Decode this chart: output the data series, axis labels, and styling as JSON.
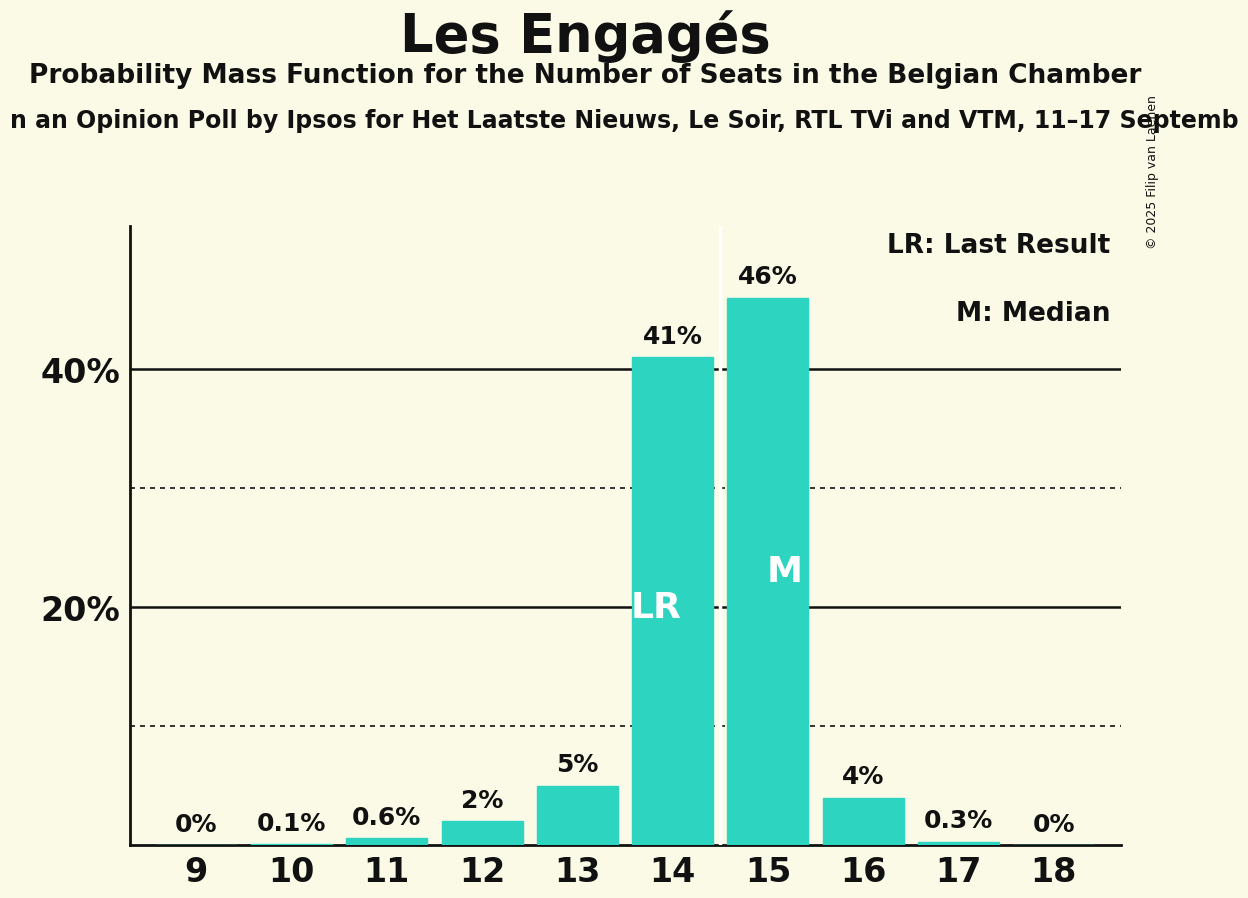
{
  "title": "Les Engagés",
  "subtitle": "Probability Mass Function for the Number of Seats in the Belgian Chamber",
  "subtitle2": "n an Opinion Poll by Ipsos for Het Laatste Nieuws, Le Soir, RTL TVi and VTM, 11–17 Septemb",
  "copyright": "© 2025 Filip van Laenen",
  "seats": [
    9,
    10,
    11,
    12,
    13,
    14,
    15,
    16,
    17,
    18
  ],
  "probabilities": [
    0.0,
    0.1,
    0.6,
    2.0,
    5.0,
    41.0,
    46.0,
    4.0,
    0.3,
    0.0
  ],
  "bar_color": "#2dd4bf",
  "last_result_seat": 14,
  "median_seat": 15,
  "white_line_x": 14.5,
  "lr_label": "LR",
  "m_label": "M",
  "legend_lr": "LR: Last Result",
  "legend_m": "M: Median",
  "ymax": 52,
  "bg_color": "#fafae6",
  "text_color": "#111111",
  "solid_grid_levels": [
    20,
    40
  ],
  "dotted_grid_levels": [
    10,
    30
  ],
  "bar_label_fontsize": 18,
  "bar_inner_label_fontsize": 26,
  "title_fontsize": 38,
  "subtitle_fontsize": 19,
  "subtitle2_fontsize": 17,
  "ytick_fontsize": 24,
  "xtick_fontsize": 24,
  "legend_fontsize": 19,
  "copyright_fontsize": 9,
  "bar_width": 0.85,
  "xlim_left": 8.3,
  "xlim_right": 18.7
}
